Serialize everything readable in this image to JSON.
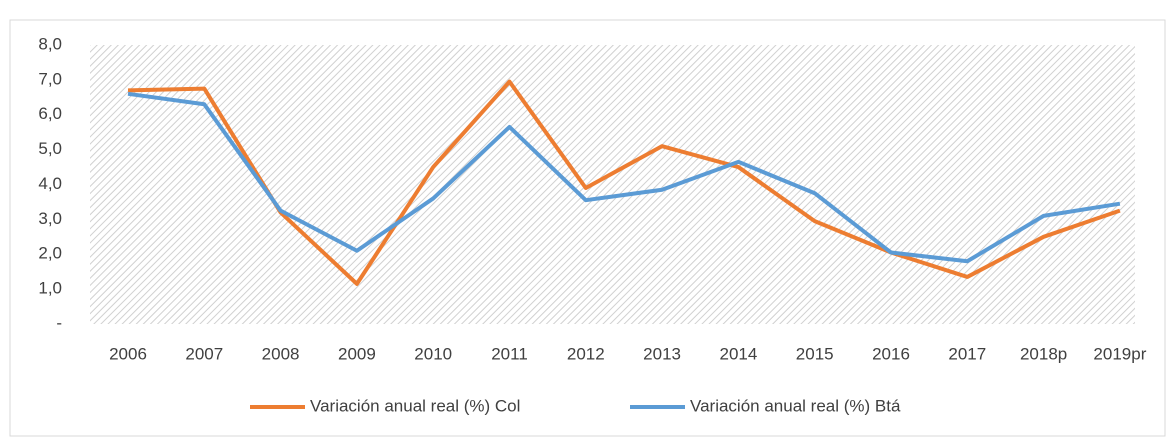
{
  "chart_data": {
    "type": "line",
    "categories": [
      "2006",
      "2007",
      "2008",
      "2009",
      "2010",
      "2011",
      "2012",
      "2013",
      "2014",
      "2015",
      "2016",
      "2017",
      "2018p",
      "2019pr"
    ],
    "series": [
      {
        "name": "Variación anual real (%) Col",
        "color": "#ed7d31",
        "values": [
          6.7,
          6.75,
          3.2,
          1.15,
          4.5,
          6.95,
          3.9,
          5.1,
          4.5,
          2.95,
          2.05,
          1.35,
          2.5,
          3.25
        ]
      },
      {
        "name": "Variación anual real (%) Btá",
        "color": "#5b9bd5",
        "values": [
          6.6,
          6.3,
          3.25,
          2.1,
          3.6,
          5.65,
          3.55,
          3.85,
          4.65,
          3.75,
          2.05,
          1.8,
          3.1,
          3.45
        ]
      }
    ],
    "ylim": [
      0,
      8
    ],
    "yticks": [
      {
        "value": 0,
        "label": "-"
      },
      {
        "value": 1,
        "label": "1,0"
      },
      {
        "value": 2,
        "label": "2,0"
      },
      {
        "value": 3,
        "label": "3,0"
      },
      {
        "value": 4,
        "label": "4,0"
      },
      {
        "value": 5,
        "label": "5,0"
      },
      {
        "value": 6,
        "label": "6,0"
      },
      {
        "value": 7,
        "label": "7,0"
      },
      {
        "value": 8,
        "label": "8,0"
      }
    ],
    "legend": "bottom"
  }
}
